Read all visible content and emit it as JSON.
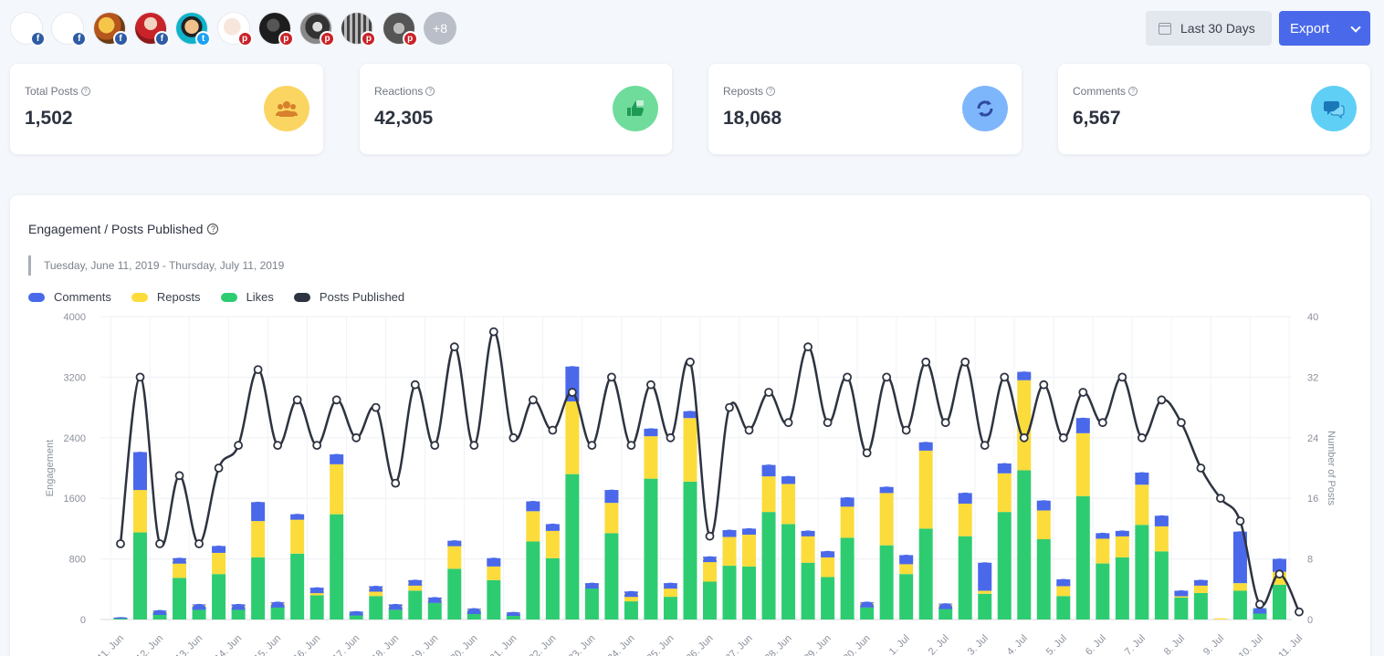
{
  "accounts": [
    {
      "face": "a0",
      "network": "fb"
    },
    {
      "face": "a0",
      "network": "fb"
    },
    {
      "face": "a1",
      "network": "fb"
    },
    {
      "face": "a2",
      "network": "fb"
    },
    {
      "face": "a3",
      "network": "tw"
    },
    {
      "face": "a4",
      "network": "pin"
    },
    {
      "face": "a5",
      "network": "pin"
    },
    {
      "face": "a6",
      "network": "pin"
    },
    {
      "face": "a7",
      "network": "pin"
    },
    {
      "face": "a8",
      "network": "pin"
    }
  ],
  "more_accounts": "+8",
  "network_icons": {
    "fb": "f",
    "tw": "t",
    "pin": "p"
  },
  "toolbar": {
    "date_range_label": "Last 30 Days",
    "export_label": "Export"
  },
  "stats": [
    {
      "label": "Total Posts",
      "value": "1,502",
      "icon": "users-icon",
      "color": "#fbd562"
    },
    {
      "label": "Reactions",
      "value": "42,305",
      "icon": "thumbs-up-icon",
      "color": "#6fdc9c"
    },
    {
      "label": "Reposts",
      "value": "18,068",
      "icon": "repost-icon",
      "color": "#7eb6fb"
    },
    {
      "label": "Comments",
      "value": "6,567",
      "icon": "comments-icon",
      "color": "#5fcff5"
    }
  ],
  "panel": {
    "title": "Engagement / Posts Published",
    "date_range": "Tuesday, June 11, 2019 - Thursday, July 11, 2019",
    "legend": [
      {
        "label": "Comments",
        "color": "#4a69ea"
      },
      {
        "label": "Reposts",
        "color": "#fcdc3b"
      },
      {
        "label": "Likes",
        "color": "#2ecc71"
      },
      {
        "label": "Posts Published",
        "color": "#2d3340"
      }
    ]
  },
  "chart_data": {
    "type": "bar",
    "stacked": true,
    "categories": [
      "11. Jun",
      "12. Jun",
      "13. Jun",
      "14. Jun",
      "15. Jun",
      "16. Jun",
      "17. Jun",
      "18. Jun",
      "19. Jun",
      "20. Jun",
      "21. Jun",
      "22. Jun",
      "23. Jun",
      "24. Jun",
      "25. Jun",
      "26. Jun",
      "27. Jun",
      "28. Jun",
      "29. Jun",
      "30. Jun",
      "1. Jul",
      "2. Jul",
      "3. Jul",
      "4. Jul",
      "5. Jul",
      "6. Jul",
      "7. Jul",
      "8. Jul",
      "9. Jul",
      "10. Jul",
      "11. Jul"
    ],
    "ylabel": "Engagement",
    "y2label": "Number of Posts",
    "ylim": [
      0,
      4000
    ],
    "y2lim": [
      0,
      40
    ],
    "yticks": [
      "0",
      "800",
      "1600",
      "2400",
      "3200",
      "4000"
    ],
    "y2ticks": [
      "0",
      "8",
      "16",
      "24",
      "32",
      "40"
    ],
    "bar_slots": [
      {
        "likes": 20,
        "reposts": 0,
        "comments": 5
      },
      {
        "likes": 1150,
        "reposts": 560,
        "comments": 500
      },
      {
        "likes": 100,
        "reposts": 15,
        "comments": 5
      },
      {
        "likes": 550,
        "reposts": 240,
        "comments": 20
      },
      {
        "likes": 170,
        "reposts": 25,
        "comments": 5
      },
      {
        "likes": 600,
        "reposts": 280,
        "comments": 90
      },
      {
        "likes": 140,
        "reposts": 40,
        "comments": 20
      },
      {
        "likes": 820,
        "reposts": 480,
        "comments": 250
      },
      {
        "likes": 170,
        "reposts": 50,
        "comments": 10
      },
      {
        "likes": 870,
        "reposts": 450,
        "comments": 70
      },
      {
        "likes": 320,
        "reposts": 70,
        "comments": 30
      },
      {
        "likes": 1390,
        "reposts": 660,
        "comments": 130
      },
      {
        "likes": 100,
        "reposts": 0,
        "comments": 5
      },
      {
        "likes": 310,
        "reposts": 110,
        "comments": 20
      },
      {
        "likes": 130,
        "reposts": 50,
        "comments": 20
      },
      {
        "likes": 380,
        "reposts": 110,
        "comments": 30
      },
      {
        "likes": 220,
        "reposts": 50,
        "comments": 20
      },
      {
        "likes": 670,
        "reposts": 300,
        "comments": 70
      },
      {
        "likes": 120,
        "reposts": 20,
        "comments": 5
      },
      {
        "likes": 520,
        "reposts": 180,
        "comments": 110
      },
      {
        "likes": 80,
        "reposts": 10,
        "comments": 5
      },
      {
        "likes": 1030,
        "reposts": 400,
        "comments": 130
      },
      {
        "likes": 810,
        "reposts": 360,
        "comments": 90
      },
      {
        "likes": 1920,
        "reposts": 960,
        "comments": 460
      },
      {
        "likes": 410,
        "reposts": 40,
        "comments": 30
      },
      {
        "likes": 1140,
        "reposts": 400,
        "comments": 170
      },
      {
        "likes": 240,
        "reposts": 110,
        "comments": 20
      },
      {
        "likes": 1860,
        "reposts": 560,
        "comments": 100
      },
      {
        "likes": 300,
        "reposts": 150,
        "comments": 30
      },
      {
        "likes": 1820,
        "reposts": 840,
        "comments": 90
      },
      {
        "likes": 500,
        "reposts": 310,
        "comments": 20
      },
      {
        "likes": 710,
        "reposts": 380,
        "comments": 90
      },
      {
        "likes": 700,
        "reposts": 420,
        "comments": 80
      },
      {
        "likes": 1420,
        "reposts": 470,
        "comments": 150
      },
      {
        "likes": 1260,
        "reposts": 530,
        "comments": 100
      },
      {
        "likes": 750,
        "reposts": 370,
        "comments": 50
      },
      {
        "likes": 560,
        "reposts": 260,
        "comments": 80
      },
      {
        "likes": 1080,
        "reposts": 410,
        "comments": 120
      },
      {
        "likes": 160,
        "reposts": 60,
        "comments": 10
      },
      {
        "likes": 980,
        "reposts": 690,
        "comments": 80
      },
      {
        "likes": 600,
        "reposts": 130,
        "comments": 120
      },
      {
        "likes": 1200,
        "reposts": 1030,
        "comments": 110
      },
      {
        "likes": 150,
        "reposts": 50,
        "comments": 10
      },
      {
        "likes": 1100,
        "reposts": 430,
        "comments": 140
      },
      {
        "likes": 340,
        "reposts": 40,
        "comments": 370
      },
      {
        "likes": 1420,
        "reposts": 510,
        "comments": 130
      },
      {
        "likes": 1970,
        "reposts": 1190,
        "comments": 110
      },
      {
        "likes": 1060,
        "reposts": 380,
        "comments": 130
      },
      {
        "likes": 310,
        "reposts": 130,
        "comments": 90
      },
      {
        "likes": 1630,
        "reposts": 830,
        "comments": 200
      },
      {
        "likes": 740,
        "reposts": 330,
        "comments": 70
      },
      {
        "likes": 820,
        "reposts": 290,
        "comments": 60
      },
      {
        "likes": 1250,
        "reposts": 530,
        "comments": 160
      },
      {
        "likes": 900,
        "reposts": 330,
        "comments": 140
      },
      {
        "likes": 290,
        "reposts": 40,
        "comments": 50
      },
      {
        "likes": 350,
        "reposts": 130,
        "comments": 40
      },
      {
        "likes": 0,
        "reposts": 10,
        "comments": 0
      },
      {
        "likes": 380,
        "reposts": 100,
        "comments": 680
      },
      {
        "likes": 140,
        "reposts": 0,
        "comments": 10
      },
      {
        "likes": 460,
        "reposts": 170,
        "comments": 170
      },
      {
        "likes": 0,
        "reposts": 0,
        "comments": 0
      }
    ],
    "posts_published": [
      10,
      32,
      10,
      19,
      10,
      20,
      23,
      33,
      23,
      29,
      23,
      29,
      24,
      28,
      18,
      31,
      23,
      36,
      23,
      38,
      24,
      29,
      25,
      30,
      23,
      32,
      23,
      31,
      24,
      34,
      11,
      28,
      25,
      30,
      26,
      36,
      26,
      32,
      22,
      32,
      25,
      34,
      26,
      34,
      23,
      32,
      24,
      31,
      24,
      30,
      26,
      32,
      24,
      29,
      26,
      20,
      16,
      13,
      2,
      6,
      1
    ]
  }
}
